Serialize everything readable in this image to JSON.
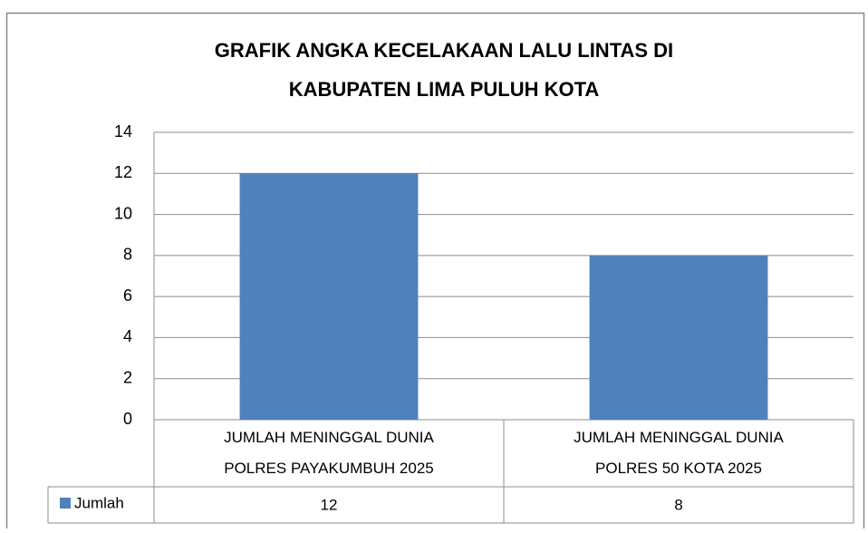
{
  "chart_data": {
    "type": "bar",
    "title": "GRAFIK ANGKA KECELAKAAN LALU LINTAS DI\nKABUPATEN LIMA PULUH KOTA",
    "categories": [
      "JUMLAH MENINGGAL DUNIA\nPOLRES PAYAKUMBUH 2025",
      "JUMLAH MENINGGAL DUNIA\nPOLRES 50 KOTA 2025"
    ],
    "series": [
      {
        "name": "Jumlah",
        "color": "#4f81bd",
        "values": [
          12,
          8
        ]
      }
    ],
    "ylim": [
      0,
      14
    ],
    "yticks": [
      0,
      2,
      4,
      6,
      8,
      10,
      12,
      14
    ],
    "grid": true,
    "data_table": true
  }
}
